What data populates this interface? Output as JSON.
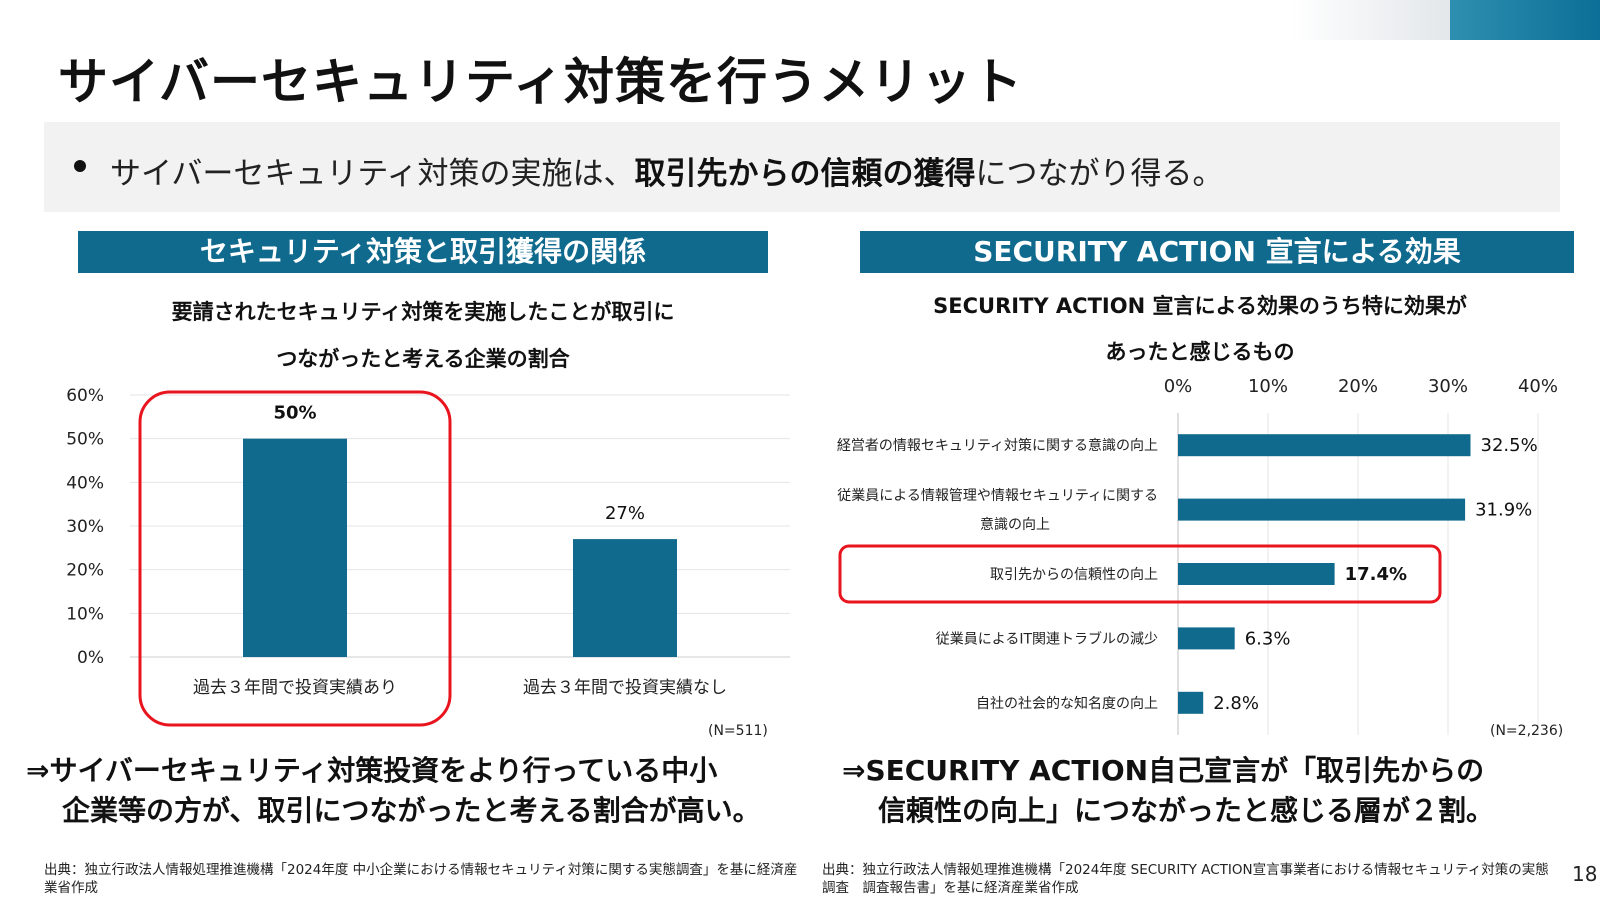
{
  "slide": {
    "title": "サイバーセキュリティ対策を行うメリット",
    "page_number": "18",
    "accent_color": "#0f6a8e",
    "highlight_color": "#e8141e"
  },
  "banner": {
    "text_before": "サイバーセキュリティ対策の実施は、",
    "text_bold": "取引先からの信頼の獲得",
    "text_after": "につながり得る。"
  },
  "left_panel": {
    "header": "セキュリティ対策と取引獲得の関係",
    "subtitle_line1": "要請されたセキュリティ対策を実施したことが取引に",
    "subtitle_line2": "つながったと考える企業の割合",
    "n_note": "(N=511)",
    "conclusion_line1": "⇒サイバーセキュリティ対策投資をより行っている中小",
    "conclusion_line2": "企業等の方が、取引につながったと考える割合が高い。",
    "footnote": "出典：独立行政法人情報処理推進機構「2024年度 中小企業における情報セキュリティ対策に関する実態調査」を基に経済産業省作成"
  },
  "right_panel": {
    "header": "SECURITY ACTION 宣言による効果",
    "subtitle_line1": "SECURITY ACTION 宣言による効果のうち特に効果が",
    "subtitle_line2": "あったと感じるもの",
    "n_note": "(N=2,236)",
    "conclusion_line1": "⇒SECURITY ACTION自己宣言が「取引先からの",
    "conclusion_line2": "信頼性の向上」につながったと感じる層が２割。",
    "footnote": "出典：独立行政法人情報処理推進機構「2024年度 SECURITY ACTION宣言事業者における情報セキュリティ対策の実態調査　調査報告書」を基に経済産業省作成"
  },
  "chart_data": [
    {
      "type": "bar",
      "categories": [
        "過去３年間で投資実績あり",
        "過去３年間で投資実績なし"
      ],
      "values": [
        50,
        27
      ],
      "value_labels": [
        "50%",
        "27%"
      ],
      "y_ticks": [
        "0%",
        "10%",
        "20%",
        "30%",
        "40%",
        "50%",
        "60%"
      ],
      "ylim": [
        0,
        60
      ],
      "grid": true,
      "highlighted_category_index": 0,
      "bar_color": "#0f6a8e"
    },
    {
      "type": "bar",
      "orientation": "horizontal",
      "categories": [
        [
          "経営者の情報セキュリティ対策に関する意識の向上"
        ],
        [
          "従業員による情報管理や情報セキュリティに関する",
          "意識の向上"
        ],
        [
          "取引先からの信頼性の向上"
        ],
        [
          "従業員によるIT関連トラブルの減少"
        ],
        [
          "自社の社会的な知名度の向上"
        ]
      ],
      "values": [
        32.5,
        31.9,
        17.4,
        6.3,
        2.8
      ],
      "value_labels": [
        "32.5%",
        "31.9%",
        "17.4%",
        "6.3%",
        "2.8%"
      ],
      "x_ticks": [
        "0%",
        "10%",
        "20%",
        "30%",
        "40%"
      ],
      "xlim": [
        0,
        40
      ],
      "grid": true,
      "highlighted_category_index": 2,
      "bar_color": "#0f6a8e"
    }
  ]
}
